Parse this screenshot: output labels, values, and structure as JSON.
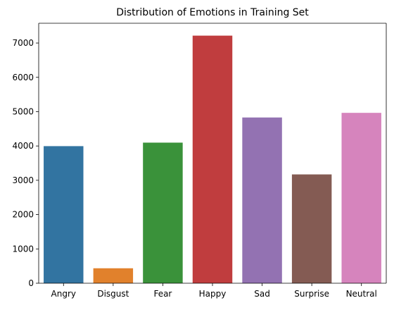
{
  "chart_data": {
    "type": "bar",
    "title": "Distribution of Emotions in Training Set",
    "xlabel": "",
    "ylabel": "",
    "categories": [
      "Angry",
      "Disgust",
      "Fear",
      "Happy",
      "Sad",
      "Surprise",
      "Neutral"
    ],
    "values": [
      3995,
      436,
      4097,
      7215,
      4830,
      3171,
      4965
    ],
    "colors": [
      "#3274a1",
      "#e1812c",
      "#3a923a",
      "#c03d3e",
      "#9372b2",
      "#845b53",
      "#d684bd"
    ],
    "ylim": [
      0,
      7576
    ],
    "yticks": [
      0,
      1000,
      2000,
      3000,
      4000,
      5000,
      6000,
      7000
    ],
    "grid": false,
    "legend": "none"
  }
}
